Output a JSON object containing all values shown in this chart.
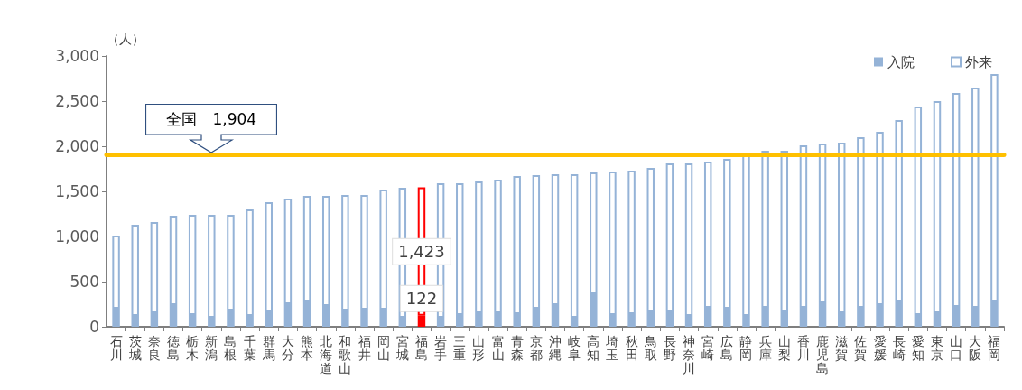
{
  "chart_data": {
    "type": "bar",
    "stacked": true,
    "ylabel": "（人）",
    "categories": [
      "石川",
      "茨城",
      "奈良",
      "徳島",
      "栃木",
      "新潟",
      "島根",
      "千葉",
      "群馬",
      "大分",
      "熊本",
      "北海道",
      "和歌山",
      "福井",
      "岡山",
      "宮城",
      "福島",
      "岩手",
      "三重",
      "山形",
      "富山",
      "青森",
      "京都",
      "沖縄",
      "岐阜",
      "高知",
      "埼玉",
      "秋田",
      "鳥取",
      "長野",
      "神奈川",
      "宮崎",
      "広島",
      "静岡",
      "兵庫",
      "山梨",
      "香川",
      "鹿児島",
      "滋賀",
      "佐賀",
      "愛媛",
      "長崎",
      "愛知",
      "東京",
      "山口",
      "大阪",
      "福岡"
    ],
    "series": [
      {
        "name": "入院",
        "color": "#95b3d7",
        "colors": [
          "#95b3d7",
          "#95b3d7",
          "#95b3d7",
          "#95b3d7",
          "#95b3d7",
          "#95b3d7",
          "#95b3d7",
          "#95b3d7",
          "#95b3d7",
          "#95b3d7",
          "#95b3d7",
          "#95b3d7",
          "#95b3d7",
          "#95b3d7",
          "#95b3d7",
          "#95b3d7",
          "#ff0000",
          "#95b3d7",
          "#95b3d7",
          "#95b3d7",
          "#95b3d7",
          "#95b3d7",
          "#95b3d7",
          "#95b3d7",
          "#95b3d7",
          "#95b3d7",
          "#95b3d7",
          "#95b3d7",
          "#95b3d7",
          "#95b3d7",
          "#95b3d7",
          "#95b3d7",
          "#95b3d7",
          "#95b3d7",
          "#95b3d7",
          "#95b3d7",
          "#95b3d7",
          "#95b3d7",
          "#95b3d7",
          "#95b3d7",
          "#95b3d7",
          "#95b3d7",
          "#95b3d7",
          "#95b3d7",
          "#95b3d7",
          "#95b3d7",
          "#95b3d7"
        ],
        "values": [
          200,
          120,
          160,
          240,
          130,
          100,
          180,
          120,
          170,
          260,
          280,
          230,
          180,
          190,
          190,
          100,
          122,
          100,
          130,
          160,
          160,
          140,
          200,
          240,
          100,
          360,
          130,
          140,
          170,
          170,
          120,
          210,
          200,
          120,
          210,
          170,
          210,
          270,
          150,
          210,
          240,
          280,
          130,
          160,
          220,
          210,
          280
        ],
        "value_labels": [
          null,
          null,
          null,
          null,
          null,
          null,
          null,
          null,
          null,
          null,
          null,
          null,
          null,
          null,
          null,
          null,
          "122",
          null,
          null,
          null,
          null,
          null,
          null,
          null,
          null,
          null,
          null,
          null,
          null,
          null,
          null,
          null,
          null,
          null,
          null,
          null,
          null,
          null,
          null,
          null,
          null,
          null,
          null,
          null,
          null,
          null,
          null
        ]
      },
      {
        "name": "外来",
        "color": "#95b3d7",
        "colors": [
          "#95b3d7",
          "#95b3d7",
          "#95b3d7",
          "#95b3d7",
          "#95b3d7",
          "#95b3d7",
          "#95b3d7",
          "#95b3d7",
          "#95b3d7",
          "#95b3d7",
          "#95b3d7",
          "#95b3d7",
          "#95b3d7",
          "#95b3d7",
          "#95b3d7",
          "#95b3d7",
          "#ff0000",
          "#95b3d7",
          "#95b3d7",
          "#95b3d7",
          "#95b3d7",
          "#95b3d7",
          "#95b3d7",
          "#95b3d7",
          "#95b3d7",
          "#95b3d7",
          "#95b3d7",
          "#95b3d7",
          "#95b3d7",
          "#95b3d7",
          "#95b3d7",
          "#95b3d7",
          "#95b3d7",
          "#95b3d7",
          "#95b3d7",
          "#95b3d7",
          "#95b3d7",
          "#95b3d7",
          "#95b3d7",
          "#95b3d7",
          "#95b3d7",
          "#95b3d7",
          "#95b3d7",
          "#95b3d7",
          "#95b3d7",
          "#95b3d7",
          "#95b3d7"
        ],
        "values": [
          810,
          1010,
          1000,
          990,
          1110,
          1140,
          1060,
          1180,
          1210,
          1160,
          1170,
          1220,
          1280,
          1270,
          1330,
          1440,
          1423,
          1490,
          1460,
          1450,
          1470,
          1530,
          1480,
          1450,
          1590,
          1350,
          1590,
          1590,
          1590,
          1640,
          1690,
          1620,
          1660,
          1780,
          1740,
          1780,
          1800,
          1760,
          1890,
          1890,
          1920,
          2010,
          2310,
          2340,
          2370,
          2440,
          2520
        ],
        "value_labels": [
          null,
          null,
          null,
          null,
          null,
          null,
          null,
          null,
          null,
          null,
          null,
          null,
          null,
          null,
          null,
          null,
          "1,423",
          null,
          null,
          null,
          null,
          null,
          null,
          null,
          null,
          null,
          null,
          null,
          null,
          null,
          null,
          null,
          null,
          null,
          null,
          null,
          null,
          null,
          null,
          null,
          null,
          null,
          null,
          null,
          null,
          null,
          null
        ]
      }
    ],
    "ylim": [
      0,
      3000
    ],
    "yticks": [
      0,
      500,
      {
        "value": 1000,
        "label": "1,000"
      },
      {
        "value": 1500,
        "label": "1,500"
      },
      {
        "value": 2000,
        "label": "2,000"
      },
      {
        "value": 2500,
        "label": "2,500"
      },
      {
        "value": 3000,
        "label": "3,000"
      }
    ],
    "ref_lines": [
      {
        "axis": "y",
        "value": 1904,
        "label": "全国　1,904",
        "color": "#ffc000"
      }
    ],
    "grid": false,
    "legend": "top right"
  }
}
